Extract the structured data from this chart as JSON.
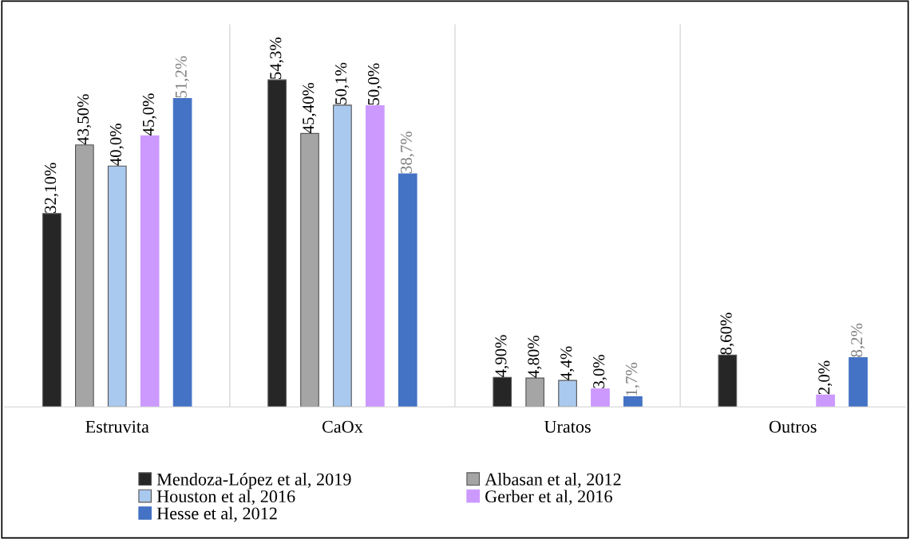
{
  "chart_data": {
    "type": "bar",
    "categories": [
      "Estruvita",
      "CaOx",
      "Uratos",
      "Outros"
    ],
    "series": [
      {
        "name": "Mendoza-López et al, 2019",
        "color": "#262626",
        "values": [
          32.1,
          54.3,
          4.9,
          8.6
        ],
        "value_labels": [
          "32,10%",
          "54,3%",
          "4,90%",
          "8,60%"
        ]
      },
      {
        "name": "Albasan et al, 2012",
        "color": "#a5a5a5",
        "values": [
          43.5,
          45.4,
          4.8,
          null
        ],
        "value_labels": [
          "43,50%",
          "45,40%",
          "4,80%",
          null
        ]
      },
      {
        "name": "Houston et al, 2016",
        "color": "#a9c9ee",
        "values": [
          40.0,
          50.1,
          4.4,
          null
        ],
        "value_labels": [
          "40,0%",
          "50,1%",
          "4,4%",
          null
        ]
      },
      {
        "name": "Gerber et al, 2016",
        "color": "#cc99ff",
        "values": [
          45.0,
          50.0,
          3.0,
          2.0
        ],
        "value_labels": [
          "45,0%",
          "50,0%",
          "3,0%",
          "2,0%"
        ]
      },
      {
        "name": "Hesse et al, 2012",
        "color": "#4472c4",
        "values": [
          51.2,
          38.7,
          1.7,
          8.2
        ],
        "value_labels": [
          "51,2%",
          "38,7%",
          "1,7%",
          "8,2%"
        ]
      }
    ],
    "tick_labels": "x",
    "legend": "bottom"
  }
}
